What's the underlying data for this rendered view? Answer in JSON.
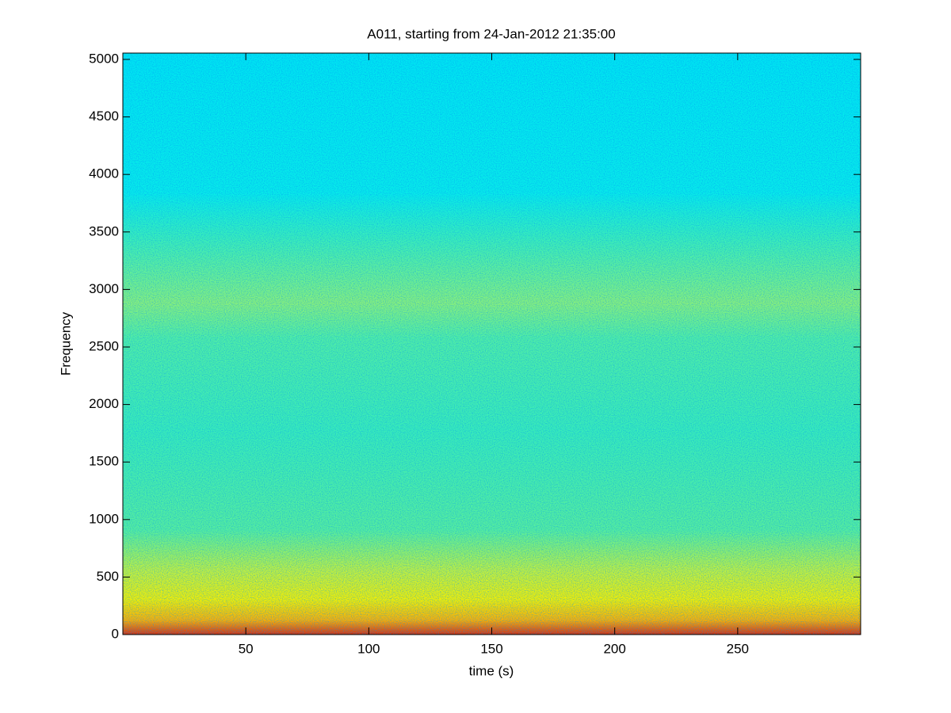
{
  "chart_data": {
    "type": "spectrogram",
    "title": "A011, starting from 24-Jan-2012 21:35:00",
    "x_label": "time (s)",
    "y_label": "Frequency",
    "colormap": "jet",
    "xlim": [
      0,
      300
    ],
    "xticks": [
      50,
      100,
      150,
      200,
      250
    ],
    "ylim": [
      0,
      5055
    ],
    "yticks": [
      0,
      500,
      1000,
      1500,
      2000,
      2500,
      3000,
      3500,
      4000,
      4500,
      5000
    ]
  }
}
